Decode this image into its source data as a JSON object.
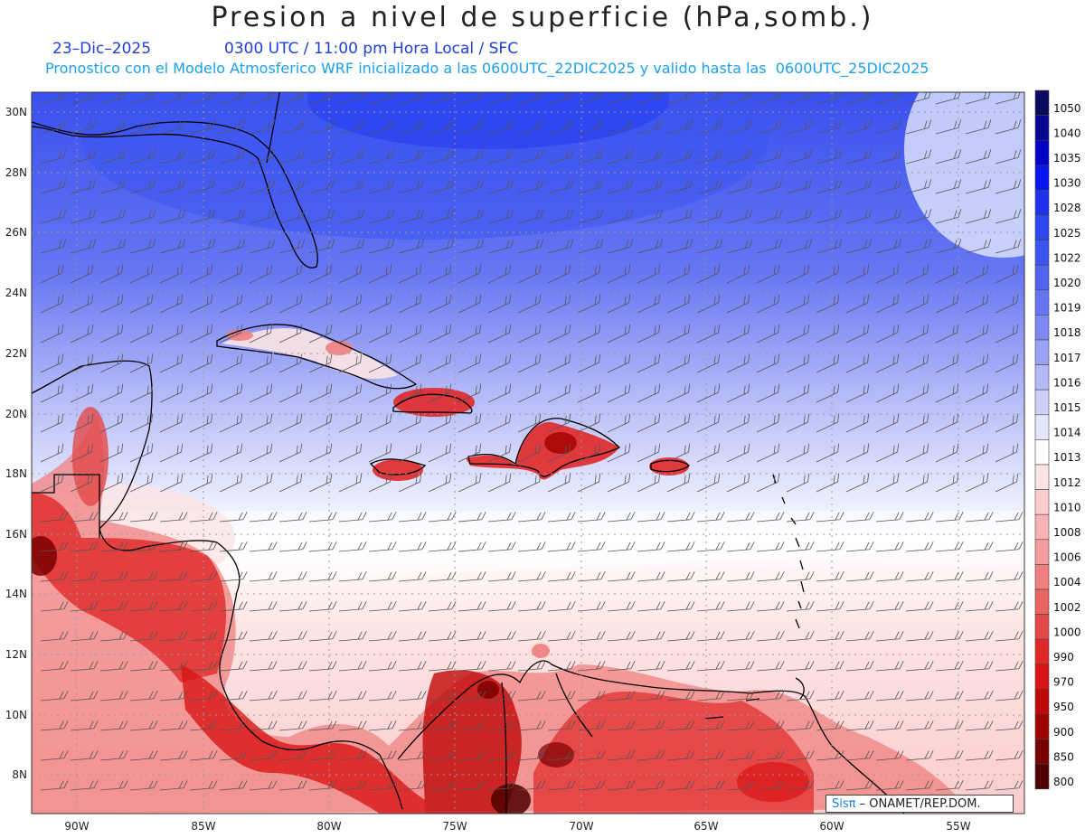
{
  "title": "Presion a nivel de superficie (hPa,somb.)",
  "date": "23–Dic–2025",
  "time_info": "0300 UTC / 11:00 pm Hora Local / SFC",
  "model_info": "Pronostico con el Modelo Atmosferico WRF inicializado a las 0600UTC_22DIC2025 y valido hasta las  0600UTC_25DIC2025",
  "lat_labels": [
    "30N",
    "28N",
    "26N",
    "24N",
    "22N",
    "20N",
    "18N",
    "16N",
    "14N",
    "12N",
    "10N",
    "8N"
  ],
  "lon_labels": [
    "90W",
    "85W",
    "80W",
    "75W",
    "70W",
    "65W",
    "60W",
    "55W"
  ],
  "colorbar": {
    "levels": [
      "1050",
      "1040",
      "1035",
      "1030",
      "1028",
      "1025",
      "1022",
      "1020",
      "1019",
      "1018",
      "1017",
      "1016",
      "1015",
      "1014",
      "1013",
      "1012",
      "1010",
      "1008",
      "1006",
      "1004",
      "1002",
      "1000",
      "990",
      "970",
      "950",
      "900",
      "850",
      "800"
    ],
    "colors": [
      "#0a0a5e",
      "#060690",
      "#0000c8",
      "#0a14f0",
      "#1e32ee",
      "#2d46ee",
      "#3c55f0",
      "#5064f0",
      "#6676f2",
      "#7e8af4",
      "#9aa2f6",
      "#b4baf8",
      "#cdd1fa",
      "#e4e7fc",
      "#ffffff",
      "#fde4e4",
      "#fbcccc",
      "#f8b4b4",
      "#f59c9c",
      "#f08080",
      "#ea6464",
      "#e44848",
      "#e02828",
      "#d81414",
      "#c00808",
      "#a00000",
      "#7a0000",
      "#500000"
    ]
  },
  "credit": {
    "brand": "Sisπ",
    "text": "– ONAMET/REP.DOM."
  }
}
